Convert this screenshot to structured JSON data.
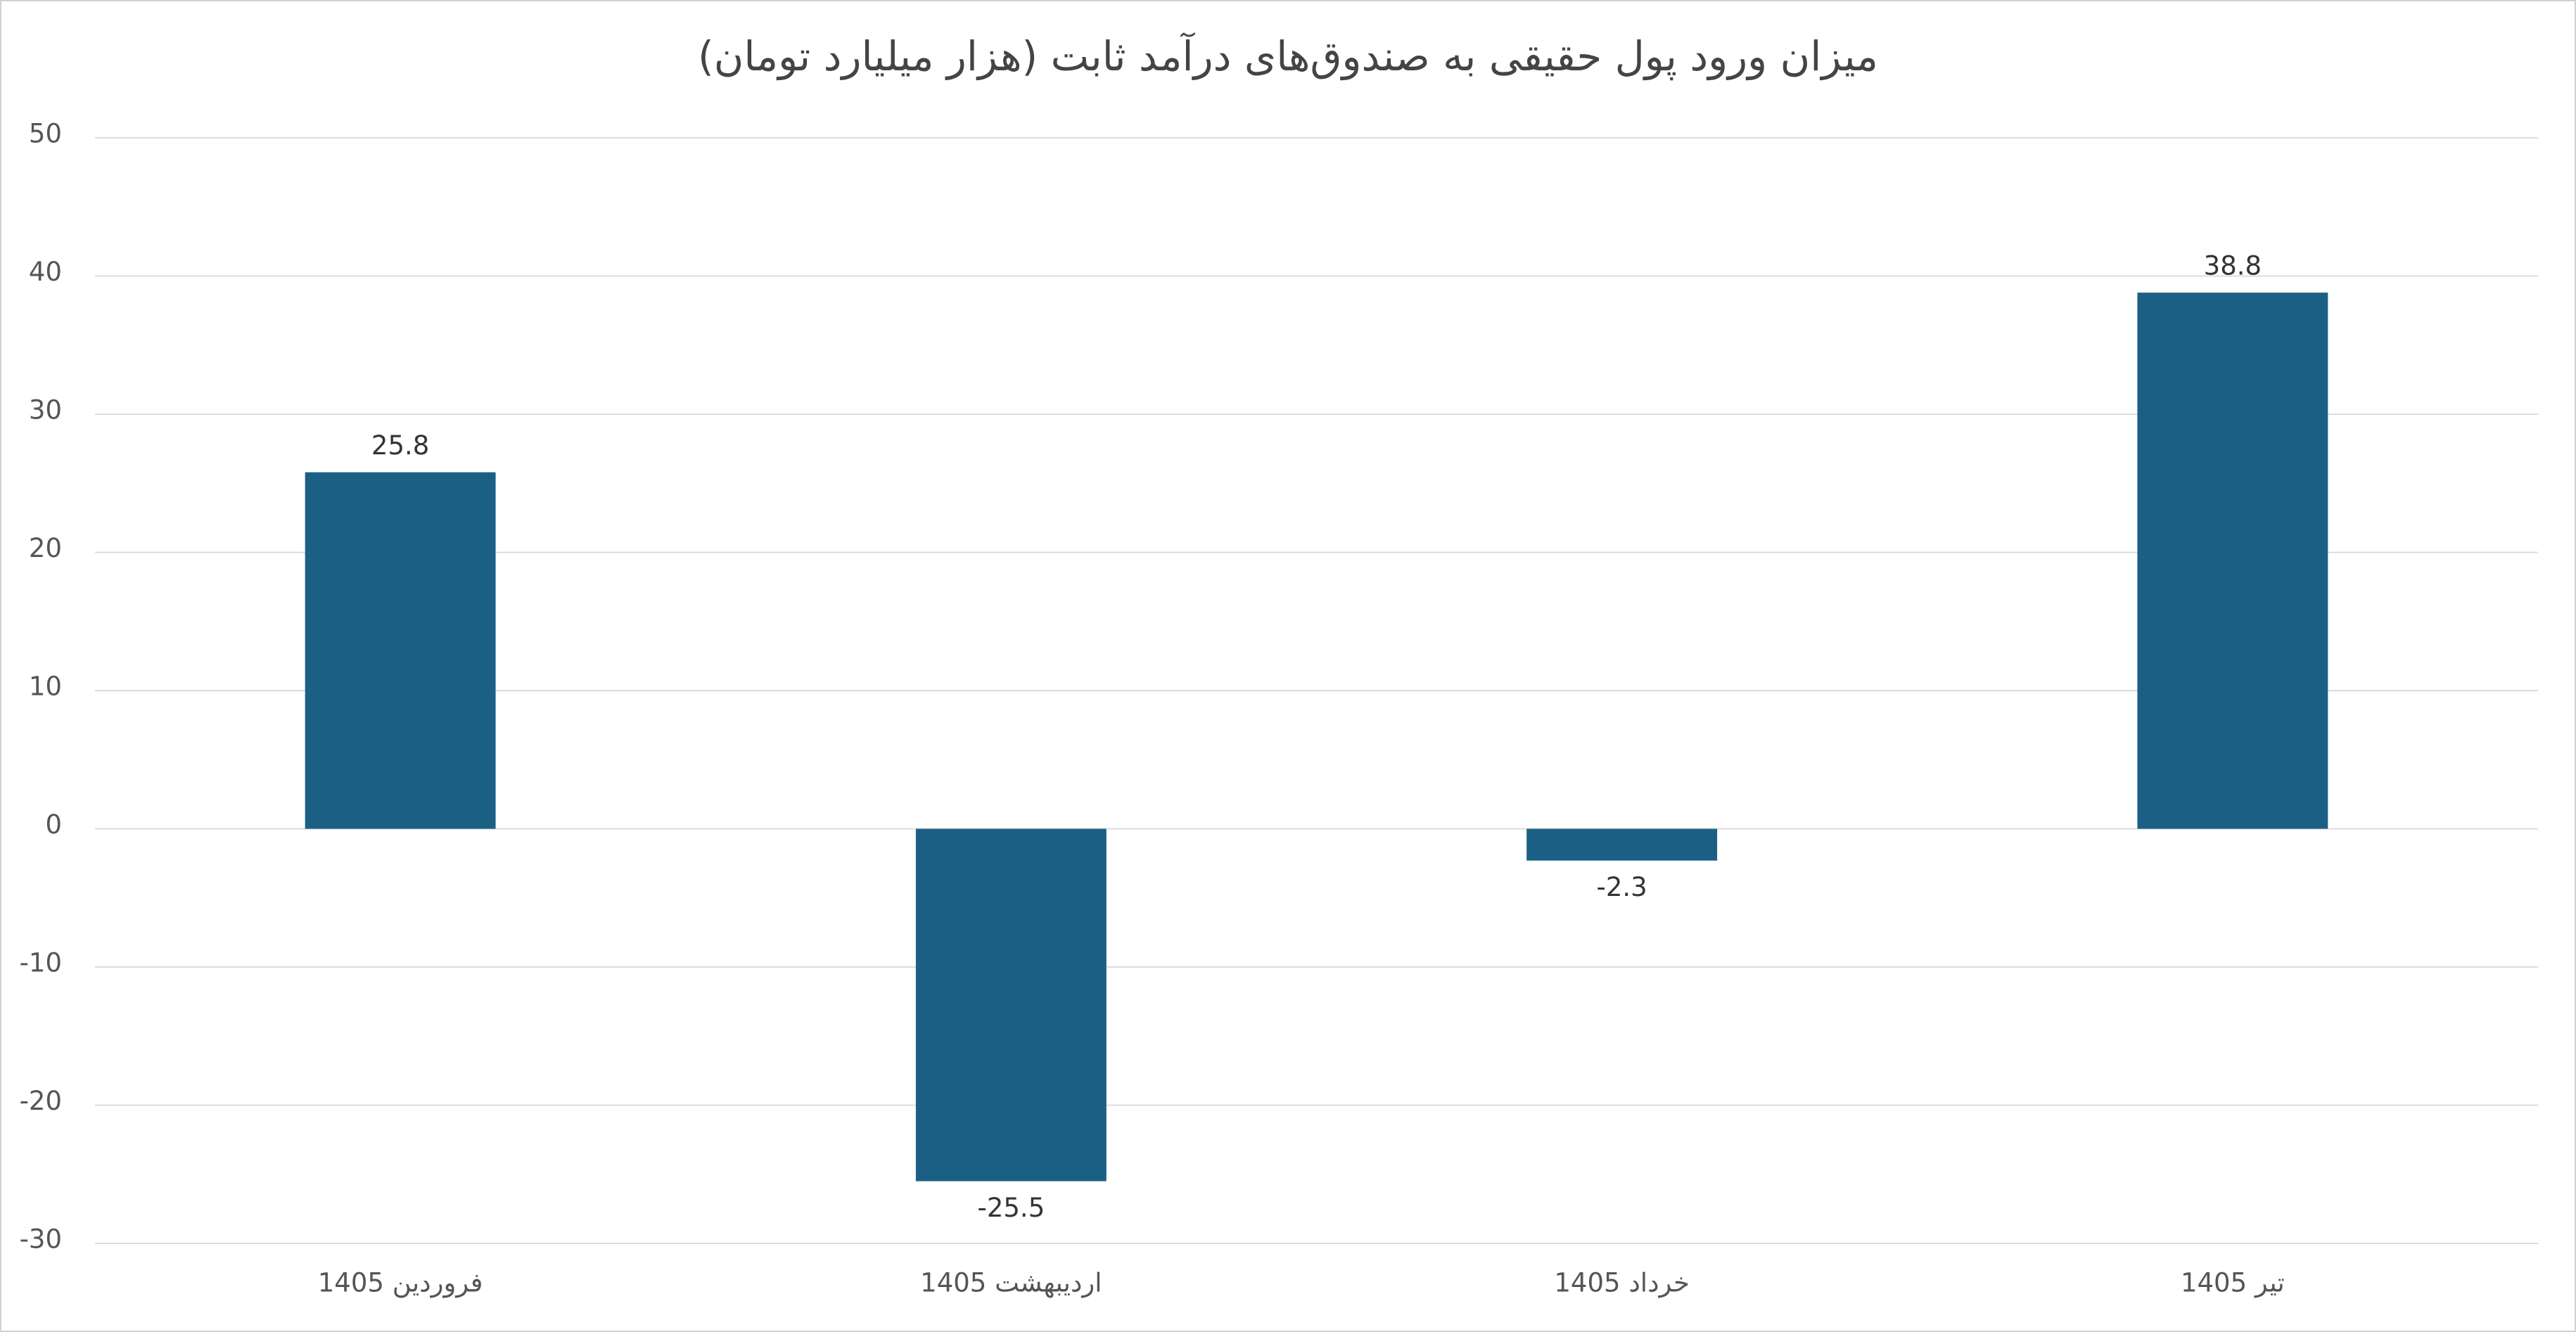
{
  "chart_data": {
    "type": "bar",
    "title": "میزان ورود پول حقیقی به صندوق‌های درآمد ثابت (هزار میلیارد تومان)",
    "categories": [
      "فروردین 1405",
      "اردیبهشت 1405",
      "خرداد 1405",
      "تیر 1405"
    ],
    "values": [
      25.8,
      -25.5,
      -2.3,
      38.8
    ],
    "color": "#1b5f85",
    "ylim": [
      -30,
      50
    ],
    "yticks": [
      -30,
      -20,
      -10,
      0,
      10,
      20,
      30,
      40,
      50
    ],
    "grid": true
  }
}
